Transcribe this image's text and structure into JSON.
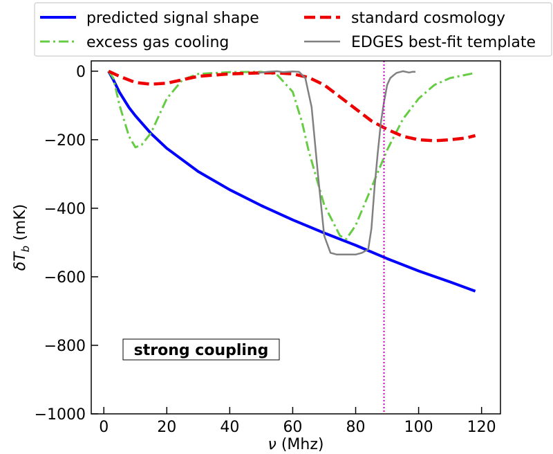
{
  "chart_data": {
    "type": "line",
    "xlabel": "ν (Mhz)",
    "xlim": [
      -4,
      126
    ],
    "ylim": [
      -1000,
      30
    ],
    "xticks": [
      0,
      20,
      40,
      60,
      80,
      100,
      120
    ],
    "yticks": [
      0,
      -200,
      -400,
      -600,
      -800,
      -1000
    ],
    "xtick_labels": [
      "0",
      "20",
      "40",
      "60",
      "80",
      "100",
      "120"
    ],
    "ytick_labels": [
      "0",
      "−200",
      "−400",
      "−600",
      "−800",
      "−1000"
    ],
    "grid": false,
    "legend_placement": "top, above plot, 2 columns",
    "annotation": "strong coupling",
    "vertical_line": {
      "x": 89,
      "color": "#cc00cc",
      "style": "dotted"
    },
    "series": [
      {
        "name": "predicted signal shape",
        "color": "#0000ff",
        "dash": "solid",
        "x": [
          1.5,
          3,
          5,
          8,
          10,
          15,
          20,
          30,
          40,
          50,
          60,
          70,
          80,
          90,
          100,
          110,
          118
        ],
        "y": [
          0,
          -25,
          -62,
          -106,
          -130,
          -182,
          -225,
          -293,
          -346,
          -392,
          -434,
          -472,
          -508,
          -547,
          -583,
          -615,
          -642
        ]
      },
      {
        "name": "excess gas cooling",
        "color": "#66cc44",
        "dash": "dashdot",
        "x": [
          1.5,
          3,
          5,
          8,
          10,
          12,
          15,
          20,
          25,
          30,
          40,
          50,
          55,
          60,
          63,
          65,
          70,
          75,
          77,
          80,
          85,
          90,
          95,
          100,
          105,
          110,
          118
        ],
        "y": [
          0,
          -20,
          -100,
          -190,
          -222,
          -215,
          -180,
          -80,
          -25,
          -8,
          -3,
          -2,
          -10,
          -60,
          -150,
          -230,
          -390,
          -480,
          -490,
          -450,
          -340,
          -230,
          -140,
          -80,
          -40,
          -20,
          -5
        ]
      },
      {
        "name": "standard cosmology",
        "color": "#ee0000",
        "dash": "dashed",
        "x": [
          1.5,
          5,
          10,
          15,
          20,
          25,
          30,
          40,
          50,
          55,
          60,
          65,
          70,
          75,
          80,
          85,
          90,
          95,
          100,
          105,
          110,
          115,
          118
        ],
        "y": [
          0,
          -15,
          -33,
          -38,
          -35,
          -25,
          -15,
          -8,
          -5,
          -5,
          -8,
          -18,
          -40,
          -75,
          -110,
          -145,
          -170,
          -190,
          -200,
          -203,
          -200,
          -195,
          -188
        ]
      },
      {
        "name": "EDGES best-fit template",
        "color": "#808080",
        "dash": "solid",
        "x": [
          49,
          52,
          55,
          57,
          60,
          62,
          64,
          66,
          68,
          70,
          72,
          74,
          76,
          78,
          80,
          82,
          84,
          85,
          86,
          87,
          88,
          89,
          90,
          91,
          92,
          93,
          95,
          97,
          98,
          99
        ],
        "y": [
          -5,
          -2,
          0,
          -3,
          -1,
          -2,
          -20,
          -105,
          -300,
          -480,
          -530,
          -535,
          -535,
          -535,
          -535,
          -530,
          -520,
          -460,
          -340,
          -240,
          -150,
          -90,
          -40,
          -20,
          -12,
          -5,
          0,
          -4,
          -2,
          -2
        ]
      }
    ]
  }
}
